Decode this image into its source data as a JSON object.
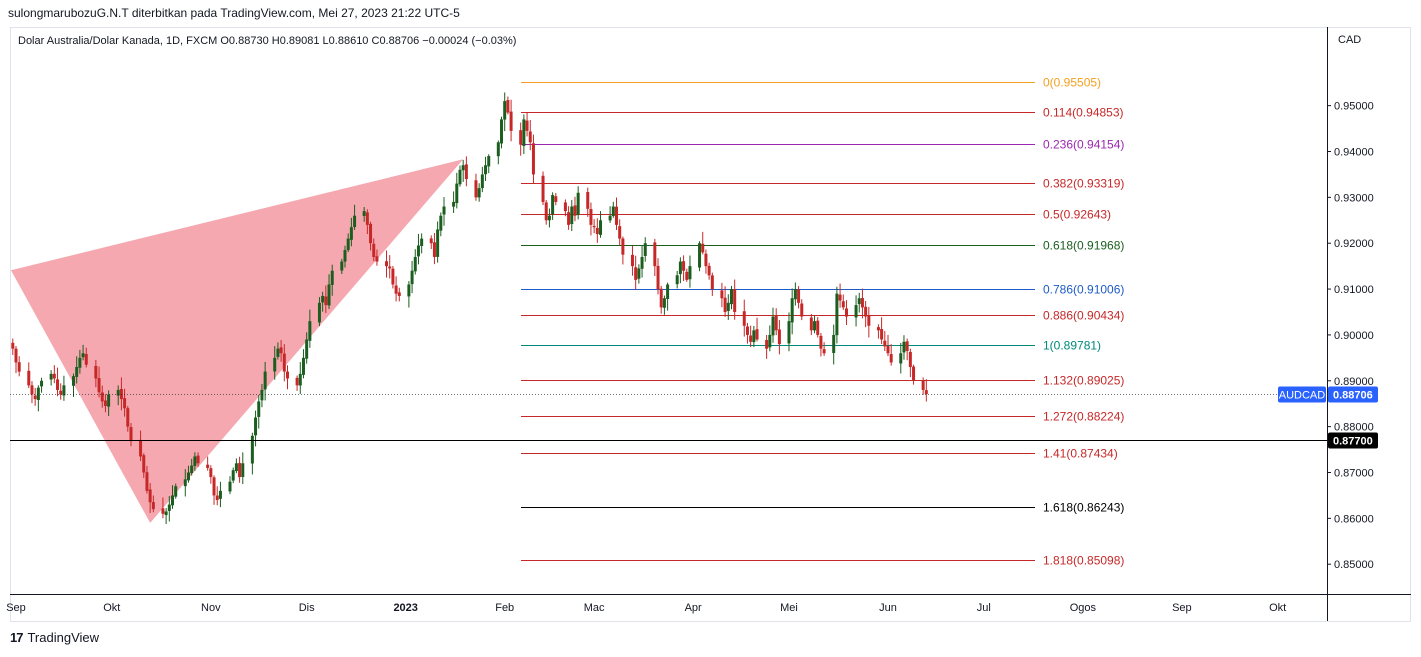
{
  "header": {
    "published_by": "sulongmarubozuG.N.T diterbitkan pada TradingView.com, Mei 27, 2023 21:22 UTC-5"
  },
  "legend": {
    "symbol": "Dolar Australia/Dolar Kanada, 1D, FXCM",
    "open": "O0.88730",
    "high": "H0.89081",
    "low": "L0.88610",
    "close": "C0.88706",
    "change": "−0.00024 (−0.03%)"
  },
  "footer": {
    "brand": "TradingView"
  },
  "chart_data": {
    "type": "candlestick",
    "currency": "CAD",
    "y_axis_ticks": [
      "0.95000",
      "0.94000",
      "0.93000",
      "0.92000",
      "0.91000",
      "0.90000",
      "0.89000",
      "0.88000",
      "0.87000",
      "0.86000",
      "0.85000"
    ],
    "ylim": [
      0.8435,
      0.9617
    ],
    "x_axis_ticks": [
      "Sep",
      "Okt",
      "Nov",
      "Dis",
      "2023",
      "Feb",
      "Mac",
      "Apr",
      "Mei",
      "Jun",
      "Jul",
      "Ogos",
      "Sep",
      "Okt"
    ],
    "current_price": {
      "label": "AUDCAD",
      "value": "0.88706",
      "price": 0.88706,
      "color": "#2962ff"
    },
    "horizontal_line": {
      "value": "0.87700",
      "price": 0.877,
      "color": "#000000"
    },
    "fibonacci": [
      {
        "level": "0",
        "price_text": "0.95505",
        "price": 0.95505,
        "color": "#f5a020"
      },
      {
        "level": "0.114",
        "price_text": "0.94853",
        "price": 0.94853,
        "color": "#c62828"
      },
      {
        "level": "0.236",
        "price_text": "0.94154",
        "price": 0.94154,
        "color": "#9c27b0"
      },
      {
        "level": "0.382",
        "price_text": "0.93319",
        "price": 0.93319,
        "color": "#c62828"
      },
      {
        "level": "0.5",
        "price_text": "0.92643",
        "price": 0.92643,
        "color": "#c62828"
      },
      {
        "level": "0.618",
        "price_text": "0.91968",
        "price": 0.91968,
        "color": "#1b5e20"
      },
      {
        "level": "0.786",
        "price_text": "0.91006",
        "price": 0.91006,
        "color": "#1e5bc6"
      },
      {
        "level": "0.886",
        "price_text": "0.90434",
        "price": 0.90434,
        "color": "#c62828"
      },
      {
        "level": "1",
        "price_text": "0.89781",
        "price": 0.89781,
        "color": "#00897b"
      },
      {
        "level": "1.132",
        "price_text": "0.89025",
        "price": 0.89025,
        "color": "#c62828"
      },
      {
        "level": "1.272",
        "price_text": "0.88224",
        "price": 0.88224,
        "color": "#c62828"
      },
      {
        "level": "1.41",
        "price_text": "0.87434",
        "price": 0.87434,
        "color": "#c62828"
      },
      {
        "level": "1.618",
        "price_text": "0.86243",
        "price": 0.86243,
        "color": "#000000"
      },
      {
        "level": "1.818",
        "price_text": "0.85098",
        "price": 0.85098,
        "color": "#c62828"
      }
    ],
    "colors": {
      "up": "#1b5e20",
      "down": "#c62828",
      "pattern_fill": "#f28b94"
    },
    "pattern": {
      "type": "triangle",
      "points": [
        {
          "date": "2022-08-26",
          "price": 0.9141
        },
        {
          "date": "2022-10-13",
          "price": 0.859
        },
        {
          "date": "2023-01-19",
          "price": 0.9383
        }
      ]
    },
    "series_close": [
      0.8985,
      0.897,
      0.894,
      0.892,
      0.889,
      0.887,
      0.886,
      0.8885,
      0.89,
      0.8915,
      0.8905,
      0.888,
      0.887,
      0.889,
      0.891,
      0.893,
      0.895,
      0.896,
      0.8935,
      0.8905,
      0.8875,
      0.8855,
      0.8845,
      0.887,
      0.888,
      0.886,
      0.884,
      0.88,
      0.877,
      0.8735,
      0.87,
      0.866,
      0.8635,
      0.862,
      0.861,
      0.8615,
      0.863,
      0.865,
      0.867,
      0.8685,
      0.87,
      0.8715,
      0.8735,
      0.872,
      0.871,
      0.869,
      0.865,
      0.864,
      0.866,
      0.868,
      0.8705,
      0.872,
      0.869,
      0.872,
      0.878,
      0.882,
      0.8855,
      0.888,
      0.892,
      0.895,
      0.897,
      0.896,
      0.892,
      0.8905,
      0.889,
      0.8915,
      0.895,
      0.899,
      0.903,
      0.907,
      0.9085,
      0.9065,
      0.911,
      0.914,
      0.916,
      0.9185,
      0.921,
      0.9235,
      0.926,
      0.927,
      0.924,
      0.92,
      0.917,
      0.916,
      0.915,
      0.9145,
      0.911,
      0.909,
      0.9085,
      0.911,
      0.914,
      0.917,
      0.9195,
      0.921,
      0.92,
      0.917,
      0.923,
      0.926,
      0.928,
      0.929,
      0.933,
      0.936,
      0.937,
      0.934,
      0.93,
      0.932,
      0.935,
      0.937,
      0.939,
      0.942,
      0.947,
      0.951,
      0.9485,
      0.9445,
      0.9415,
      0.947,
      0.9445,
      0.942,
      0.935,
      0.929,
      0.925,
      0.926,
      0.9305,
      0.929,
      0.927,
      0.924,
      0.928,
      0.926,
      0.931,
      0.9275,
      0.924,
      0.9235,
      0.922,
      0.925,
      0.926,
      0.928,
      0.924,
      0.921,
      0.9175,
      0.915,
      0.912,
      0.9145,
      0.917,
      0.92,
      0.915,
      0.91,
      0.906,
      0.908,
      0.911,
      0.913,
      0.916,
      0.914,
      0.912,
      0.915,
      0.92,
      0.918,
      0.915,
      0.913,
      0.91,
      0.908,
      0.905,
      0.907,
      0.91,
      0.905,
      0.902,
      0.9,
      0.8985,
      0.901,
      0.899,
      0.897,
      0.9,
      0.904,
      0.901,
      0.898,
      0.903,
      0.908,
      0.91,
      0.907,
      0.904,
      0.901,
      0.903,
      0.9,
      0.897,
      0.896,
      0.9,
      0.909,
      0.9075,
      0.906,
      0.904,
      0.9065,
      0.908,
      0.906,
      0.904,
      0.902,
      0.901,
      0.899,
      0.8975,
      0.896,
      0.894,
      0.896,
      0.8985,
      0.8965,
      0.893,
      0.89,
      0.888,
      0.8871
    ]
  }
}
